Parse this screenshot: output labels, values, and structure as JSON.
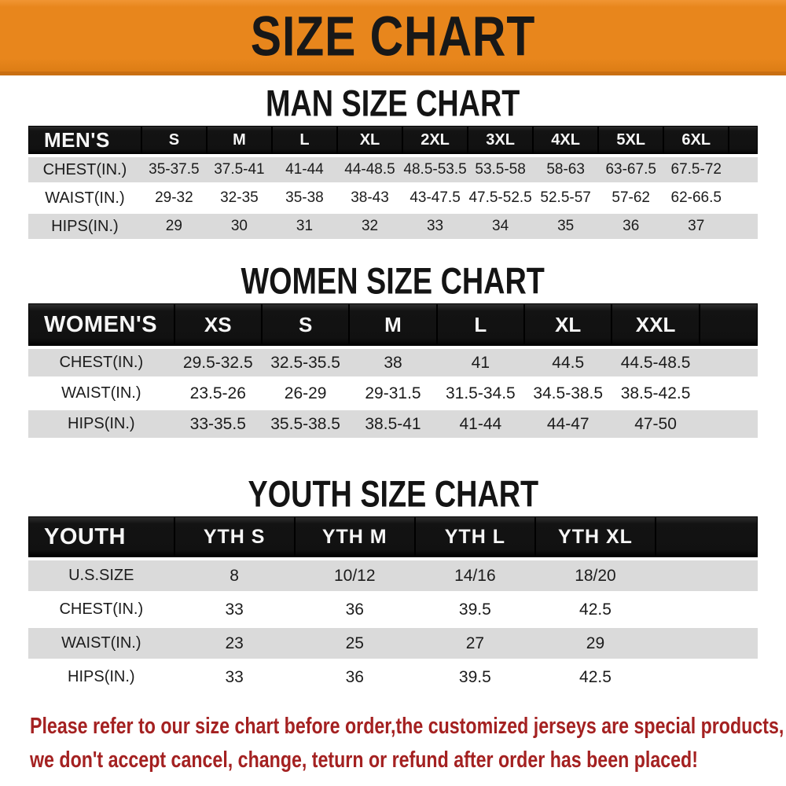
{
  "colors": {
    "banner_bg": "#E8861C",
    "banner_bg_dark": "#C96F12",
    "header_bg": "#141414",
    "row_gray": "#DADADA",
    "footer_red": "#A42121"
  },
  "banner": {
    "title": "SIZE CHART"
  },
  "sections": [
    {
      "title": "MAN SIZE CHART",
      "header_label": "MEN'S",
      "columns": [
        "S",
        "M",
        "L",
        "XL",
        "2XL",
        "3XL",
        "4XL",
        "5XL",
        "6XL"
      ],
      "rows": [
        {
          "label": "CHEST(IN.)",
          "values": [
            "35-37.5",
            "37.5-41",
            "41-44",
            "44-48.5",
            "48.5-53.5",
            "53.5-58",
            "58-63",
            "63-67.5",
            "67.5-72"
          ]
        },
        {
          "label": "WAIST(IN.)",
          "values": [
            "29-32",
            "32-35",
            "35-38",
            "38-43",
            "43-47.5",
            "47.5-52.5",
            "52.5-57",
            "57-62",
            "62-66.5"
          ]
        },
        {
          "label": "HIPS(IN.)",
          "values": [
            "29",
            "30",
            "31",
            "32",
            "33",
            "34",
            "35",
            "36",
            "37"
          ]
        }
      ]
    },
    {
      "title": "WOMEN SIZE CHART",
      "header_label": "WOMEN'S",
      "columns": [
        "XS",
        "S",
        "M",
        "L",
        "XL",
        "XXL"
      ],
      "rows": [
        {
          "label": "CHEST(IN.)",
          "values": [
            "29.5-32.5",
            "32.5-35.5",
            "38",
            "41",
            "44.5",
            "44.5-48.5"
          ]
        },
        {
          "label": "WAIST(IN.)",
          "values": [
            "23.5-26",
            "26-29",
            "29-31.5",
            "31.5-34.5",
            "34.5-38.5",
            "38.5-42.5"
          ]
        },
        {
          "label": "HIPS(IN.)",
          "values": [
            "33-35.5",
            "35.5-38.5",
            "38.5-41",
            "41-44",
            "44-47",
            "47-50"
          ]
        }
      ]
    },
    {
      "title": "YOUTH SIZE CHART",
      "header_label": "YOUTH",
      "columns": [
        "YTH S",
        "YTH M",
        "YTH L",
        "YTH XL"
      ],
      "rows": [
        {
          "label": "U.S.SIZE",
          "values": [
            "8",
            "10/12",
            "14/16",
            "18/20"
          ]
        },
        {
          "label": "CHEST(IN.)",
          "values": [
            "33",
            "36",
            "39.5",
            "42.5"
          ]
        },
        {
          "label": "WAIST(IN.)",
          "values": [
            "23",
            "25",
            "27",
            "29"
          ]
        },
        {
          "label": "HIPS(IN.)",
          "values": [
            "33",
            "36",
            "39.5",
            "42.5"
          ]
        }
      ]
    }
  ],
  "footer": {
    "lines": [
      "Please refer to our size chart before order,the customized jerseys are special products,",
      "we don't accept cancel, change, teturn or refund after order has been placed!"
    ]
  }
}
